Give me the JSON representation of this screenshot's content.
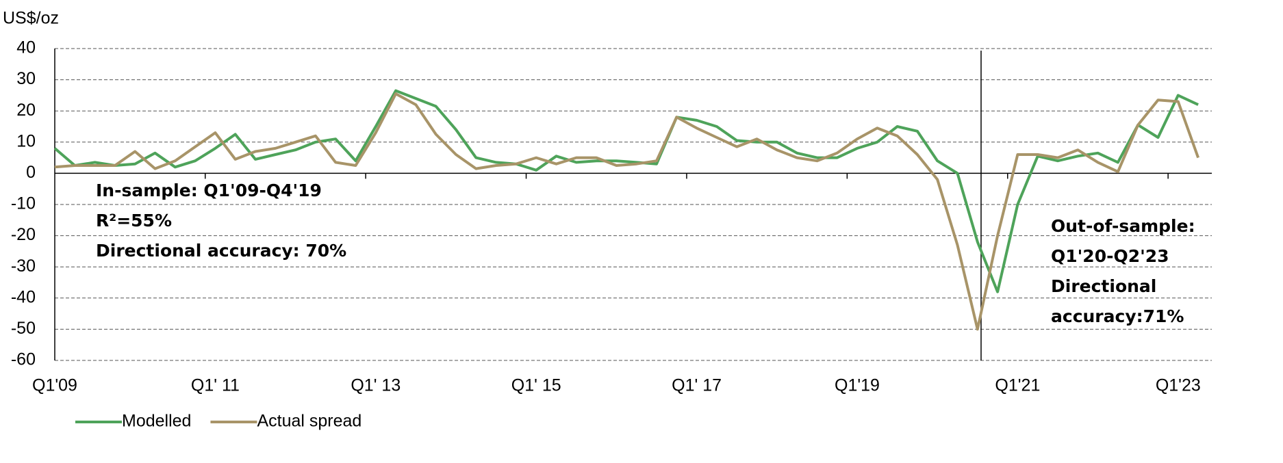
{
  "chart_data": {
    "type": "line",
    "y_label": "US$/oz",
    "categories": [
      "Q1'09",
      null,
      null,
      null,
      null,
      null,
      null,
      null,
      "Q1' 11",
      null,
      null,
      null,
      null,
      null,
      null,
      null,
      "Q1' 13",
      null,
      null,
      null,
      null,
      null,
      null,
      null,
      "Q1' 15",
      null,
      null,
      null,
      null,
      null,
      null,
      null,
      "Q1' 17",
      null,
      null,
      null,
      null,
      null,
      null,
      null,
      "Q1'19",
      null,
      null,
      null,
      null,
      null,
      null,
      null,
      "Q1'21",
      null,
      null,
      null,
      null,
      null,
      null,
      null,
      "Q1'23",
      null
    ],
    "series": [
      {
        "name": "Modelled",
        "color": "#4ea35a",
        "values": [
          8,
          2.5,
          3.5,
          2.5,
          3,
          6.5,
          2,
          4,
          8,
          12.5,
          4.5,
          6,
          7.5,
          10,
          11,
          4,
          15,
          26.5,
          24,
          21.5,
          14,
          5,
          3.5,
          3,
          1,
          5.5,
          3.5,
          4,
          4,
          3.5,
          3,
          18,
          17,
          15,
          10.5,
          10,
          10,
          6.5,
          5,
          5,
          8,
          10,
          15,
          13.5,
          4,
          0,
          -22,
          -38,
          -10,
          5.5,
          4,
          5.5,
          6.5,
          3.5,
          15.5,
          11.5,
          25,
          22
        ]
      },
      {
        "name": "Actual spread",
        "color": "#a89468",
        "values": [
          2,
          2.5,
          2.5,
          2.5,
          7,
          1.5,
          4,
          8.5,
          13,
          4.5,
          7,
          8,
          10,
          12,
          3.5,
          2.5,
          13,
          25.5,
          22,
          12.5,
          6,
          1.5,
          2.5,
          3,
          5,
          3,
          5,
          5,
          2.5,
          3,
          4,
          18,
          14.5,
          11.5,
          8.5,
          11,
          7.5,
          5,
          4,
          6.5,
          11,
          14.5,
          12,
          6,
          -2,
          -23,
          -50,
          -20,
          6,
          6,
          5,
          7.5,
          3.5,
          0.5,
          15.5,
          23.5,
          23,
          5
        ]
      }
    ],
    "ylim": [
      -60,
      40
    ],
    "yticks": [
      -60,
      -50,
      -40,
      -30,
      -20,
      -10,
      0,
      10,
      20,
      30,
      40
    ],
    "grid": true,
    "annotations": [
      {
        "lines": [
          "In-sample: Q1'09-Q4'19",
          "R²=55%",
          "Directional accuracy:  70%"
        ]
      },
      {
        "lines": [
          "Out-of-sample:",
          "Q1'20-Q2'23",
          "Directional",
          "accuracy:71%"
        ]
      }
    ]
  }
}
